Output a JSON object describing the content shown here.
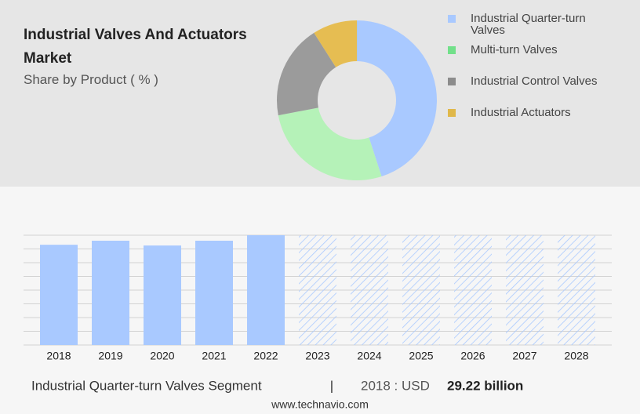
{
  "chart_data": [
    {
      "type": "pie",
      "title": "Industrial Valves And Actuators Market",
      "subtitle": "Share by Product ( % )",
      "categories": [
        "Industrial Quarter-turn Valves",
        "Multi-turn Valves",
        "Industrial Control Valves",
        "Industrial Actuators"
      ],
      "values": [
        45,
        27,
        19,
        9
      ],
      "colors": [
        "#a9c9ff",
        "#b5f2b8",
        "#9b9b9b",
        "#e6bd52"
      ],
      "legend_colors": [
        "#a9c9ff",
        "#72e08a",
        "#8c8c8c",
        "#e0b84a"
      ],
      "donut": true,
      "legend": "right"
    },
    {
      "type": "bar",
      "categories": [
        "2018",
        "2019",
        "2020",
        "2021",
        "2022",
        "2023",
        "2024",
        "2025",
        "2026",
        "2027",
        "2028"
      ],
      "values": [
        29.22,
        30.4,
        29.0,
        30.4,
        32.0,
        null,
        null,
        null,
        null,
        null,
        null
      ],
      "value_labels": [
        "29.22 billion",
        null,
        null,
        null,
        null,
        null,
        null,
        null,
        null,
        null,
        null
      ],
      "color": "#a9c9ff",
      "ylim": [
        0,
        32
      ],
      "grid": true
    }
  ],
  "footer": {
    "segment": "Industrial Quarter-turn Valves Segment",
    "separator": "|",
    "label": "2018 : USD",
    "source": "www.technavio.com"
  }
}
